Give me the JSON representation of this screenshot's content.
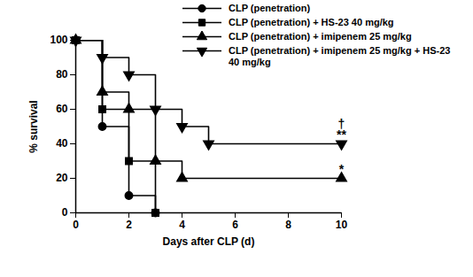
{
  "chart_data": {
    "type": "line",
    "x_label": "Days after CLP (d)",
    "y_label": "% survival",
    "xlim": [
      0,
      10
    ],
    "xticks": [
      0,
      2,
      4,
      6,
      8,
      10
    ],
    "ylim": [
      0,
      100
    ],
    "yticks": [
      0,
      20,
      40,
      60,
      80,
      100
    ],
    "grid": false,
    "legend": "top-right",
    "series": [
      {
        "name": "CLP (penetration)",
        "color": "#000000",
        "marker": "circle",
        "line_style": "step",
        "x": [
          0,
          1,
          2,
          3
        ],
        "values": [
          100,
          50,
          10,
          0
        ]
      },
      {
        "name": "CLP (penetration) + HS-23 40 mg/kg",
        "color": "#000000",
        "marker": "square",
        "line_style": "step",
        "x": [
          0,
          1,
          2,
          3
        ],
        "values": [
          100,
          60,
          30,
          0
        ]
      },
      {
        "name": "CLP (penetration) + imipenem 25 mg/kg",
        "color": "#000000",
        "marker": "triangle",
        "line_style": "step",
        "x": [
          0,
          1,
          2,
          3,
          4,
          10
        ],
        "values": [
          100,
          70,
          60,
          30,
          20,
          20
        ]
      },
      {
        "name": "CLP (penetration) + imipenem 25 mg/kg + HS-23 40 mg/kg",
        "color": "#000000",
        "marker": "triangle-down",
        "line_style": "step",
        "x": [
          0,
          1,
          2,
          3,
          4,
          5,
          10
        ],
        "values": [
          100,
          90,
          80,
          60,
          50,
          40,
          40
        ]
      }
    ],
    "annotations": [
      {
        "text": "*",
        "x": 10,
        "y": 20
      },
      {
        "text": "**",
        "x": 10,
        "y": 40
      },
      {
        "text": "†",
        "x": 10,
        "y": 40
      }
    ]
  }
}
